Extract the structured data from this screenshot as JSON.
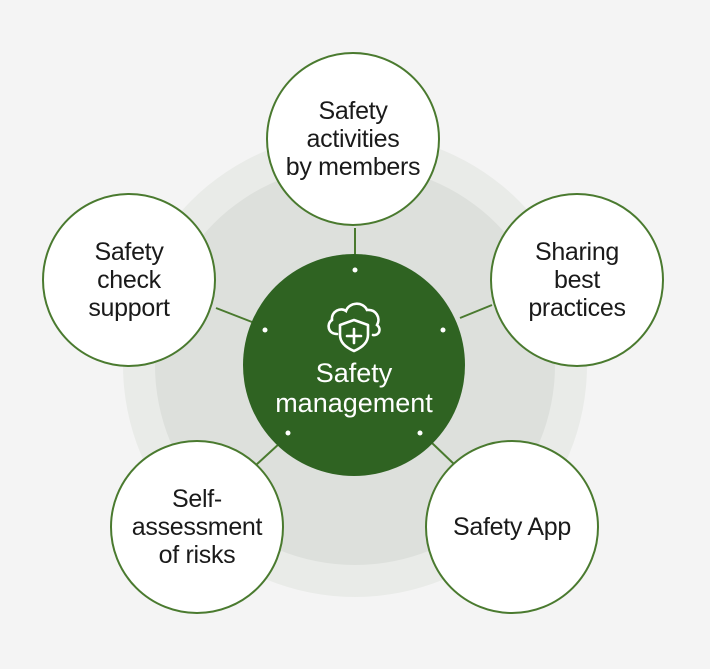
{
  "diagram": {
    "center": {
      "label": "Safety\nmanagement",
      "icon": "cloud-shield-icon"
    },
    "nodes": [
      {
        "id": "top",
        "label": "Safety\nactivities\nby members"
      },
      {
        "id": "right",
        "label": "Sharing\nbest\npractices"
      },
      {
        "id": "bottom-right",
        "label": "Safety App"
      },
      {
        "id": "bottom-left",
        "label": "Self-\nassessment\nof risks"
      },
      {
        "id": "left",
        "label": "Safety\ncheck\nsupport"
      }
    ]
  },
  "colors": {
    "accent": "#2f6322",
    "stroke": "#4a7a2f",
    "ring_outer": "#e9ebe8",
    "ring_inner": "#dde0dc",
    "background": "#f4f4f4"
  }
}
